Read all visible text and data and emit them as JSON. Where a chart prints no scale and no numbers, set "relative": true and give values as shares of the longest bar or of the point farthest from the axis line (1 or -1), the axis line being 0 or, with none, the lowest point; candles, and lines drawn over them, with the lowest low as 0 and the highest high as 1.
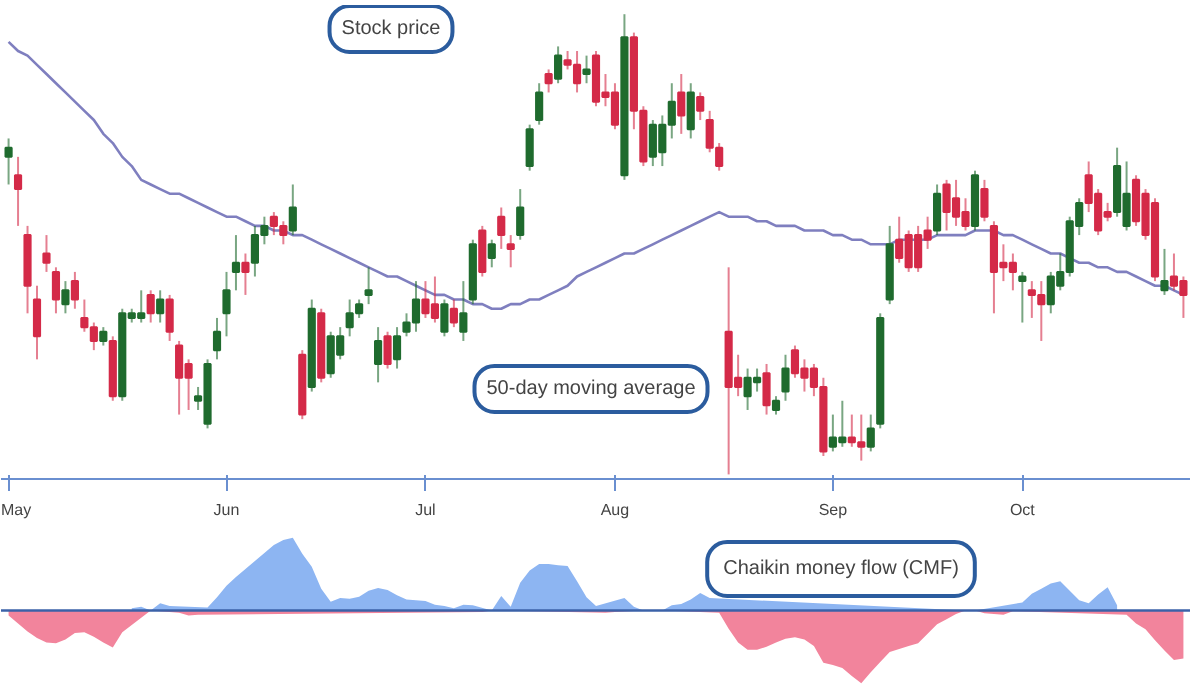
{
  "chart_data": [
    {
      "type": "candlestick",
      "relative": true,
      "tick_labels": "x",
      "grid": false,
      "categories": [
        "May",
        null,
        null,
        null,
        null,
        null,
        null,
        null,
        null,
        null,
        null,
        null,
        null,
        null,
        null,
        null,
        null,
        null,
        null,
        null,
        null,
        null,
        null,
        "Jun",
        null,
        null,
        null,
        null,
        null,
        null,
        null,
        null,
        null,
        null,
        null,
        null,
        null,
        null,
        null,
        null,
        null,
        null,
        null,
        null,
        "Jul",
        null,
        null,
        null,
        null,
        null,
        null,
        null,
        null,
        null,
        null,
        null,
        null,
        null,
        null,
        null,
        null,
        null,
        null,
        null,
        "Aug",
        null,
        null,
        null,
        null,
        null,
        null,
        null,
        null,
        null,
        null,
        null,
        null,
        null,
        null,
        null,
        null,
        null,
        null,
        null,
        null,
        null,
        null,
        "Sep",
        null,
        null,
        null,
        null,
        null,
        null,
        null,
        null,
        null,
        null,
        null,
        null,
        null,
        null,
        null,
        null,
        null,
        null,
        null,
        "Oct",
        null,
        null,
        null,
        null,
        null,
        null,
        null,
        null,
        null,
        null,
        null,
        null,
        null,
        null,
        null,
        null,
        null
      ],
      "ohlc": [
        [
          0.69,
          0.73,
          0.63,
          0.71
        ],
        [
          0.65,
          0.69,
          0.54,
          0.62
        ],
        [
          0.52,
          0.54,
          0.35,
          0.41
        ],
        [
          0.38,
          0.41,
          0.25,
          0.3
        ],
        [
          0.48,
          0.52,
          0.44,
          0.46
        ],
        [
          0.44,
          0.45,
          0.35,
          0.38
        ],
        [
          0.37,
          0.42,
          0.35,
          0.4
        ],
        [
          0.42,
          0.44,
          0.36,
          0.38
        ],
        [
          0.34,
          0.38,
          0.31,
          0.32
        ],
        [
          0.32,
          0.33,
          0.27,
          0.29
        ],
        [
          0.29,
          0.32,
          0.28,
          0.31
        ],
        [
          0.29,
          0.3,
          0.16,
          0.17
        ],
        [
          0.17,
          0.36,
          0.16,
          0.35
        ],
        [
          0.34,
          0.36,
          0.33,
          0.35
        ],
        [
          0.34,
          0.4,
          0.33,
          0.35
        ],
        [
          0.39,
          0.4,
          0.33,
          0.35
        ],
        [
          0.35,
          0.4,
          0.33,
          0.38
        ],
        [
          0.38,
          0.39,
          0.29,
          0.31
        ],
        [
          0.28,
          0.29,
          0.13,
          0.21
        ],
        [
          0.24,
          0.25,
          0.14,
          0.21
        ],
        [
          0.16,
          0.19,
          0.14,
          0.17
        ],
        [
          0.11,
          0.25,
          0.1,
          0.24
        ],
        [
          0.27,
          0.34,
          0.25,
          0.31
        ],
        [
          0.35,
          0.44,
          0.3,
          0.4
        ],
        [
          0.44,
          0.52,
          0.4,
          0.46
        ],
        [
          0.46,
          0.48,
          0.39,
          0.44
        ],
        [
          0.46,
          0.54,
          0.43,
          0.52
        ],
        [
          0.52,
          0.56,
          0.5,
          0.54
        ],
        [
          0.56,
          0.57,
          0.52,
          0.54
        ],
        [
          0.54,
          0.55,
          0.5,
          0.52
        ],
        [
          0.53,
          0.63,
          0.52,
          0.58
        ],
        [
          0.26,
          0.27,
          0.12,
          0.13
        ],
        [
          0.19,
          0.38,
          0.18,
          0.36
        ],
        [
          0.35,
          0.36,
          0.2,
          0.21
        ],
        [
          0.22,
          0.31,
          0.21,
          0.3
        ],
        [
          0.26,
          0.32,
          0.25,
          0.3
        ],
        [
          0.32,
          0.38,
          0.3,
          0.35
        ],
        [
          0.35,
          0.38,
          0.34,
          0.37
        ],
        [
          0.39,
          0.45,
          0.37,
          0.4
        ],
        [
          0.24,
          0.32,
          0.2,
          0.29
        ],
        [
          0.3,
          0.31,
          0.23,
          0.24
        ],
        [
          0.25,
          0.32,
          0.23,
          0.3
        ],
        [
          0.31,
          0.35,
          0.3,
          0.33
        ],
        [
          0.33,
          0.42,
          0.31,
          0.38
        ],
        [
          0.38,
          0.42,
          0.34,
          0.35
        ],
        [
          0.37,
          0.43,
          0.33,
          0.34
        ],
        [
          0.31,
          0.38,
          0.3,
          0.37
        ],
        [
          0.36,
          0.38,
          0.32,
          0.33
        ],
        [
          0.31,
          0.42,
          0.29,
          0.35
        ],
        [
          0.38,
          0.51,
          0.37,
          0.5
        ],
        [
          0.53,
          0.54,
          0.43,
          0.44
        ],
        [
          0.47,
          0.51,
          0.45,
          0.5
        ],
        [
          0.56,
          0.58,
          0.49,
          0.52
        ],
        [
          0.5,
          0.52,
          0.45,
          0.49
        ],
        [
          0.52,
          0.62,
          0.51,
          0.58
        ],
        [
          0.67,
          0.76,
          0.66,
          0.75
        ],
        [
          0.77,
          0.85,
          0.76,
          0.83
        ],
        [
          0.87,
          0.88,
          0.83,
          0.85
        ],
        [
          0.86,
          0.93,
          0.85,
          0.91
        ],
        [
          0.9,
          0.92,
          0.88,
          0.89
        ],
        [
          0.89,
          0.92,
          0.83,
          0.85
        ],
        [
          0.87,
          0.91,
          0.85,
          0.88
        ],
        [
          0.91,
          0.92,
          0.8,
          0.81
        ],
        [
          0.83,
          0.87,
          0.8,
          0.82
        ],
        [
          0.83,
          0.85,
          0.75,
          0.76
        ],
        [
          0.65,
          1.0,
          0.64,
          0.95
        ],
        [
          0.95,
          0.96,
          0.75,
          0.79
        ],
        [
          0.79,
          0.8,
          0.67,
          0.68
        ],
        [
          0.69,
          0.77,
          0.67,
          0.76
        ],
        [
          0.7,
          0.78,
          0.67,
          0.76
        ],
        [
          0.76,
          0.85,
          0.73,
          0.81
        ],
        [
          0.83,
          0.87,
          0.74,
          0.78
        ],
        [
          0.75,
          0.85,
          0.73,
          0.83
        ],
        [
          0.82,
          0.83,
          0.77,
          0.79
        ],
        [
          0.77,
          0.79,
          0.7,
          0.71
        ],
        [
          0.71,
          0.72,
          0.66,
          0.67
        ],
        [
          0.31,
          0.45,
          0.0,
          0.19
        ],
        [
          0.21,
          0.26,
          0.17,
          0.19
        ],
        [
          0.17,
          0.23,
          0.14,
          0.21
        ],
        [
          0.2,
          0.23,
          0.18,
          0.21
        ],
        [
          0.22,
          0.24,
          0.13,
          0.15
        ],
        [
          0.14,
          0.17,
          0.13,
          0.16
        ],
        [
          0.18,
          0.26,
          0.16,
          0.23
        ],
        [
          0.27,
          0.28,
          0.21,
          0.22
        ],
        [
          0.23,
          0.25,
          0.18,
          0.21
        ],
        [
          0.23,
          0.24,
          0.17,
          0.19
        ],
        [
          0.19,
          0.21,
          0.04,
          0.05
        ],
        [
          0.06,
          0.13,
          0.05,
          0.08
        ],
        [
          0.07,
          0.16,
          0.06,
          0.08
        ],
        [
          0.08,
          0.13,
          0.06,
          0.07
        ],
        [
          0.07,
          0.13,
          0.03,
          0.06
        ],
        [
          0.06,
          0.13,
          0.05,
          0.1
        ],
        [
          0.11,
          0.35,
          0.1,
          0.34
        ],
        [
          0.38,
          0.54,
          0.37,
          0.5
        ],
        [
          0.51,
          0.56,
          0.46,
          0.47
        ],
        [
          0.52,
          0.53,
          0.44,
          0.45
        ],
        [
          0.52,
          0.54,
          0.44,
          0.45
        ],
        [
          0.53,
          0.56,
          0.49,
          0.51
        ],
        [
          0.53,
          0.63,
          0.52,
          0.61
        ],
        [
          0.63,
          0.64,
          0.53,
          0.57
        ],
        [
          0.6,
          0.64,
          0.54,
          0.56
        ],
        [
          0.57,
          0.6,
          0.53,
          0.54
        ],
        [
          0.54,
          0.66,
          0.53,
          0.65
        ],
        [
          0.62,
          0.64,
          0.55,
          0.56
        ],
        [
          0.54,
          0.55,
          0.35,
          0.44
        ],
        [
          0.46,
          0.5,
          0.42,
          0.45
        ],
        [
          0.46,
          0.48,
          0.4,
          0.44
        ],
        [
          0.42,
          0.44,
          0.33,
          0.43
        ],
        [
          0.4,
          0.42,
          0.34,
          0.39
        ],
        [
          0.39,
          0.42,
          0.29,
          0.37
        ],
        [
          0.37,
          0.44,
          0.35,
          0.43
        ],
        [
          0.41,
          0.48,
          0.4,
          0.44
        ],
        [
          0.44,
          0.56,
          0.43,
          0.55
        ],
        [
          0.54,
          0.6,
          0.52,
          0.59
        ],
        [
          0.65,
          0.68,
          0.57,
          0.59
        ],
        [
          0.61,
          0.62,
          0.52,
          0.53
        ],
        [
          0.57,
          0.59,
          0.55,
          0.56
        ],
        [
          0.57,
          0.71,
          0.56,
          0.67
        ],
        [
          0.54,
          0.68,
          0.53,
          0.61
        ],
        [
          0.64,
          0.65,
          0.54,
          0.55
        ],
        [
          0.61,
          0.62,
          0.51,
          0.52
        ],
        [
          0.59,
          0.6,
          0.42,
          0.43
        ],
        [
          0.4,
          0.49,
          0.39,
          0.42
        ],
        [
          0.43,
          0.48,
          0.4,
          0.41
        ],
        [
          0.42,
          0.43,
          0.34,
          0.39
        ]
      ],
      "colors": [
        "#1f6b2e",
        "#d42a48",
        "#d42a48",
        "#d42a48",
        "#d42a48",
        "#d42a48",
        "#1f6b2e",
        "#d42a48",
        "#d42a48",
        "#d42a48",
        "#1f6b2e",
        "#d42a48",
        "#1f6b2e",
        "#1f6b2e",
        "#1f6b2e",
        "#d42a48",
        "#1f6b2e",
        "#d42a48",
        "#d42a48",
        "#d42a48",
        "#1f6b2e",
        "#1f6b2e",
        "#1f6b2e",
        "#1f6b2e",
        "#1f6b2e",
        "#d42a48",
        "#1f6b2e",
        "#1f6b2e",
        "#d42a48",
        "#d42a48",
        "#1f6b2e",
        "#d42a48",
        "#1f6b2e",
        "#d42a48",
        "#1f6b2e",
        "#1f6b2e",
        "#1f6b2e",
        "#1f6b2e",
        "#1f6b2e",
        "#1f6b2e",
        "#d42a48",
        "#1f6b2e",
        "#1f6b2e",
        "#1f6b2e",
        "#d42a48",
        "#d42a48",
        "#1f6b2e",
        "#d42a48",
        "#1f6b2e",
        "#1f6b2e",
        "#d42a48",
        "#1f6b2e",
        "#d42a48",
        "#d42a48",
        "#1f6b2e",
        "#1f6b2e",
        "#1f6b2e",
        "#d42a48",
        "#1f6b2e",
        "#d42a48",
        "#d42a48",
        "#1f6b2e",
        "#d42a48",
        "#d42a48",
        "#d42a48",
        "#1f6b2e",
        "#d42a48",
        "#d42a48",
        "#1f6b2e",
        "#1f6b2e",
        "#1f6b2e",
        "#d42a48",
        "#1f6b2e",
        "#d42a48",
        "#d42a48",
        "#d42a48",
        "#d42a48",
        "#d42a48",
        "#1f6b2e",
        "#1f6b2e",
        "#d42a48",
        "#1f6b2e",
        "#1f6b2e",
        "#d42a48",
        "#d42a48",
        "#d42a48",
        "#d42a48",
        "#1f6b2e",
        "#1f6b2e",
        "#d42a48",
        "#d42a48",
        "#1f6b2e",
        "#1f6b2e",
        "#1f6b2e",
        "#d42a48",
        "#d42a48",
        "#d42a48",
        "#d42a48",
        "#1f6b2e",
        "#d42a48",
        "#d42a48",
        "#d42a48",
        "#1f6b2e",
        "#d42a48",
        "#d42a48",
        "#d42a48",
        "#d42a48",
        "#1f6b2e",
        "#d42a48",
        "#d42a48",
        "#1f6b2e",
        "#1f6b2e",
        "#1f6b2e",
        "#1f6b2e",
        "#d42a48",
        "#d42a48",
        "#d42a48",
        "#1f6b2e",
        "#1f6b2e",
        "#d42a48",
        "#d42a48",
        "#d42a48",
        "#1f6b2e",
        "#d42a48",
        "#d42a48"
      ],
      "series": [
        {
          "type": "line",
          "color": "#7f7fbf",
          "values": [
            0.94,
            0.92,
            0.91,
            0.89,
            0.87,
            0.85,
            0.83,
            0.81,
            0.79,
            0.77,
            0.74,
            0.72,
            0.69,
            0.67,
            0.64,
            0.63,
            0.62,
            0.61,
            0.61,
            0.6,
            0.59,
            0.58,
            0.57,
            0.56,
            0.56,
            0.55,
            0.54,
            0.54,
            0.53,
            0.53,
            0.52,
            0.52,
            0.51,
            0.5,
            0.49,
            0.48,
            0.47,
            0.46,
            0.45,
            0.44,
            0.43,
            0.43,
            0.42,
            0.41,
            0.4,
            0.39,
            0.39,
            0.38,
            0.38,
            0.37,
            0.37,
            0.36,
            0.36,
            0.37,
            0.37,
            0.38,
            0.38,
            0.39,
            0.4,
            0.41,
            0.43,
            0.44,
            0.45,
            0.46,
            0.47,
            0.48,
            0.48,
            0.49,
            0.5,
            0.51,
            0.52,
            0.53,
            0.54,
            0.55,
            0.56,
            0.57,
            0.56,
            0.56,
            0.56,
            0.55,
            0.55,
            0.54,
            0.54,
            0.54,
            0.53,
            0.53,
            0.53,
            0.52,
            0.52,
            0.51,
            0.51,
            0.5,
            0.5,
            0.5,
            0.51,
            0.51,
            0.51,
            0.51,
            0.52,
            0.52,
            0.52,
            0.52,
            0.53,
            0.53,
            0.53,
            0.52,
            0.52,
            0.51,
            0.5,
            0.49,
            0.48,
            0.48,
            0.47,
            0.46,
            0.46,
            0.45,
            0.45,
            0.44,
            0.44,
            0.43,
            0.42,
            0.41,
            0.41,
            0.4,
            0.39
          ]
        }
      ],
      "annotations": [
        "Stock price",
        "50-day moving average"
      ]
    },
    {
      "type": "area",
      "relative": true,
      "tick_labels": false,
      "grid": false,
      "categories": [
        null,
        null,
        null,
        null,
        null,
        null,
        null,
        null,
        null,
        null,
        null,
        null,
        null,
        null,
        null,
        null,
        null,
        null,
        null,
        null,
        null,
        null,
        null,
        null,
        null,
        null,
        null,
        null,
        null,
        null,
        null,
        null,
        null,
        null,
        null,
        null,
        null,
        null,
        null,
        null,
        null,
        null,
        null,
        null,
        null,
        null,
        null,
        null,
        null,
        null,
        null,
        null,
        null,
        null,
        null,
        null,
        null,
        null,
        null,
        null,
        null,
        null,
        null,
        null,
        null,
        null,
        null,
        null,
        null,
        null,
        null,
        null,
        null,
        null,
        null,
        null,
        null,
        null,
        null,
        null,
        null,
        null,
        null,
        null,
        null,
        null,
        null,
        null,
        null,
        null,
        null,
        null,
        null,
        null,
        null,
        null,
        null,
        null,
        null,
        null,
        null,
        null,
        null,
        null,
        null,
        null,
        null,
        null,
        null,
        null,
        null,
        null,
        null,
        null,
        null,
        null,
        null,
        null,
        null,
        null,
        null,
        null,
        null,
        null,
        null
      ],
      "series": [
        {
          "color": "#8db5f2",
          "values": [
            null,
            null,
            null,
            null,
            null,
            null,
            null,
            null,
            null,
            null,
            null,
            null,
            null,
            0.03,
            0.05,
            0,
            0.1,
            0.06,
            null,
            null,
            null,
            0.04,
            0.18,
            0.34,
            0.46,
            0.57,
            0.68,
            0.79,
            0.9,
            0.97,
            1,
            0.78,
            0.6,
            0.3,
            0.12,
            0.17,
            0.16,
            0.19,
            0.27,
            0.31,
            0.28,
            0.21,
            0.15,
            0.14,
            0.13,
            0.08,
            0.06,
            0.03,
            0.08,
            0.07,
            null,
            0,
            0.2,
            0.05,
            0.38,
            0.55,
            0.64,
            0.64,
            0.62,
            0.61,
            0.4,
            0.18,
            0.06,
            null,
            null,
            0.17,
            0.05,
            0,
            0,
            0,
            0.07,
            0.09,
            0.15,
            0.24,
            0.17,
            null,
            null,
            null,
            null,
            null,
            null,
            null,
            null,
            null,
            null,
            null,
            null,
            null,
            null,
            null,
            null,
            null,
            null,
            null,
            null,
            null,
            null,
            null,
            null,
            null,
            null,
            0,
            0,
            null,
            null,
            null,
            null,
            0.11,
            0.23,
            0.3,
            0.37,
            0.4,
            0.27,
            0.14,
            0.1,
            0.22,
            0.32,
            0.07,
            null,
            null,
            null,
            null,
            null,
            null,
            null
          ]
        },
        {
          "color": "#f2849c",
          "values": [
            -0.07,
            -0.18,
            -0.29,
            -0.38,
            -0.44,
            -0.45,
            -0.4,
            -0.31,
            -0.3,
            -0.36,
            -0.44,
            -0.51,
            -0.3,
            null,
            null,
            0,
            null,
            null,
            -0.03,
            -0.07,
            -0.06,
            null,
            null,
            null,
            null,
            null,
            null,
            null,
            null,
            null,
            null,
            null,
            null,
            null,
            null,
            null,
            null,
            null,
            null,
            null,
            null,
            null,
            null,
            null,
            null,
            null,
            null,
            null,
            null,
            null,
            -0.02,
            0,
            null,
            null,
            null,
            null,
            null,
            null,
            null,
            null,
            null,
            null,
            null,
            -0.03,
            -0.02,
            null,
            null,
            0,
            0,
            0,
            null,
            null,
            null,
            null,
            null,
            -0.03,
            -0.25,
            -0.44,
            -0.54,
            -0.54,
            -0.5,
            -0.44,
            -0.39,
            -0.37,
            -0.4,
            -0.49,
            -0.72,
            -0.75,
            -0.79,
            -0.9,
            -1,
            -0.85,
            -0.71,
            -0.57,
            -0.53,
            -0.49,
            -0.45,
            -0.32,
            -0.19,
            -0.12,
            -0.05,
            0,
            0,
            -0.04,
            -0.05,
            -0.06,
            -0.01,
            null,
            null,
            null,
            null,
            null,
            null,
            null,
            null,
            null,
            null,
            null,
            -0.06,
            -0.18,
            -0.26,
            -0.41,
            -0.55,
            -0.68,
            -0.66
          ]
        }
      ],
      "ref_lines": [
        {
          "axis": "y",
          "value": 0,
          "color": "#3b62a8"
        }
      ],
      "annotations": [
        "Chaikin money flow (CMF)"
      ]
    }
  ]
}
